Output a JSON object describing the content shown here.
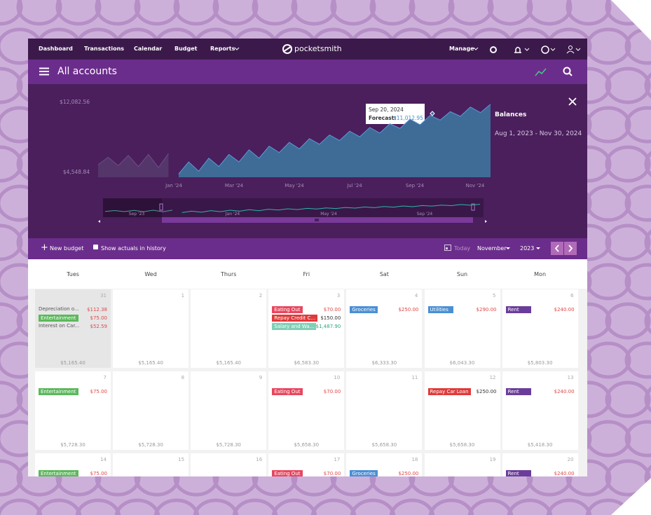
{
  "nav": {
    "links": [
      "Dashboard",
      "Transactions",
      "Calendar",
      "Budget",
      "Reports"
    ],
    "logo": "pocketsmith",
    "manage": "Manage"
  },
  "header": {
    "title": "All accounts"
  },
  "chart": {
    "ylim": [
      4548.84,
      12082.56
    ],
    "yticks": [
      {
        "value": 12082.56,
        "label": "$12,082.56"
      },
      {
        "value": 4548.84,
        "label": "$4,548.84"
      }
    ],
    "xticks": [
      "Jan '24",
      "Mar '24",
      "May '24",
      "Jul '24",
      "Sep '24",
      "Nov '24"
    ],
    "series": [
      {
        "color": "#55366a",
        "values": [
          5300,
          6100,
          5200,
          6300,
          5100,
          6400,
          5000,
          6500
        ]
      },
      {
        "color": "#3f6b97",
        "values": [
          4300,
          5600,
          4600,
          6000,
          5100,
          6400,
          5600,
          6900,
          6000,
          7300,
          6600,
          7700,
          7000,
          8100,
          7500,
          8500,
          7900,
          8900,
          8300,
          9300,
          8700,
          9700,
          9200,
          10200,
          9600,
          10600,
          10100,
          11000,
          10500,
          11500,
          10900,
          11800
        ]
      }
    ],
    "tooltip": {
      "date": "Sep 20, 2024",
      "label": "Forecast:",
      "value": "$11,012.95"
    },
    "navigator": {
      "labels": [
        "Sep '23",
        "Jan '24",
        "May '24",
        "Sep '24"
      ]
    },
    "panel": {
      "title": "Balances",
      "range": "Aug 1, 2023 - Nov 30, 2024"
    }
  },
  "toolbar": {
    "new_budget": "New budget",
    "show_actuals": "Show actuals in history",
    "today": "Today",
    "month": "November",
    "year": "2023"
  },
  "calendar": {
    "weekdays": [
      "Tues",
      "Wed",
      "Thurs",
      "Fri",
      "Sat",
      "Sun",
      "Mon"
    ],
    "weeks": [
      {
        "days": [
          {
            "day": 31,
            "balance": "$5,165.40",
            "events": [
              {
                "label": "Depreciation o...",
                "amount": "$112.38",
                "amount_color": "#e04848"
              },
              {
                "label": "Entertainment",
                "amount": "$75.00",
                "color": "#5cb85c",
                "amount_color": "#e04848"
              },
              {
                "label": "Interest on Car...",
                "amount": "$52.59",
                "amount_color": "#e04848"
              }
            ]
          },
          {
            "day": 1,
            "balance": "$5,165.40",
            "events": []
          },
          {
            "day": 2,
            "balance": "$5,165.40",
            "events": []
          },
          {
            "day": 3,
            "balance": "$6,583.30",
            "events": [
              {
                "label": "Eating Out",
                "amount": "$70.00",
                "color": "#e8475f",
                "amount_color": "#e04848"
              },
              {
                "label": "Repay Credit C...",
                "amount": "$150.00",
                "color": "#e03a3a",
                "amount_color": "#333333"
              },
              {
                "label": "Salary and Wa...",
                "amount": "$1,487.90",
                "color": "#7fcfb5",
                "amount_color": "#2aa876"
              }
            ]
          },
          {
            "day": 4,
            "balance": "$6,333.30",
            "events": [
              {
                "label": "Groceries",
                "amount": "$250.00",
                "color": "#4a8fd4",
                "amount_color": "#e04848"
              }
            ]
          },
          {
            "day": 5,
            "balance": "$6,043.30",
            "events": [
              {
                "label": "Utilities",
                "amount": "$290.00",
                "color": "#4a8fd4",
                "amount_color": "#e04848"
              }
            ]
          },
          {
            "day": 6,
            "balance": "$5,803.30",
            "events": [
              {
                "label": "Rent",
                "amount": "$240.00",
                "color": "#6a3d9a",
                "amount_color": "#e04848"
              }
            ]
          }
        ]
      },
      {
        "days": [
          {
            "day": 7,
            "balance": "$5,728.30",
            "events": [
              {
                "label": "Entertainment",
                "amount": "$75.00",
                "color": "#5cb85c",
                "amount_color": "#e04848"
              }
            ]
          },
          {
            "day": 8,
            "balance": "$5,728.30",
            "events": []
          },
          {
            "day": 9,
            "balance": "$5,728.30",
            "events": []
          },
          {
            "day": 10,
            "balance": "$5,658.30",
            "events": [
              {
                "label": "Eating Out",
                "amount": "$70.00",
                "color": "#e8475f",
                "amount_color": "#e04848"
              }
            ]
          },
          {
            "day": 11,
            "balance": "$5,658.30",
            "events": []
          },
          {
            "day": 12,
            "balance": "$5,658.30",
            "events": [
              {
                "label": "Repay Car Loan",
                "amount": "$250.00",
                "color": "#e03a3a",
                "amount_color": "#333333"
              }
            ]
          },
          {
            "day": 13,
            "balance": "$5,418.30",
            "events": [
              {
                "label": "Rent",
                "amount": "$240.00",
                "color": "#6a3d9a",
                "amount_color": "#e04848"
              }
            ]
          }
        ]
      },
      {
        "days": [
          {
            "day": 14,
            "events": [
              {
                "label": "Entertainment",
                "amount": "$75.00",
                "color": "#5cb85c",
                "amount_color": "#e04848"
              }
            ]
          },
          {
            "day": 15,
            "events": []
          },
          {
            "day": 16,
            "events": []
          },
          {
            "day": 17,
            "events": [
              {
                "label": "Eating Out",
                "amount": "$70.00",
                "color": "#e8475f",
                "amount_color": "#e04848"
              }
            ]
          },
          {
            "day": 18,
            "events": [
              {
                "label": "Groceries",
                "amount": "$250.00",
                "color": "#4a8fd4",
                "amount_color": "#e04848"
              }
            ]
          },
          {
            "day": 19,
            "events": []
          },
          {
            "day": 20,
            "events": [
              {
                "label": "Rent",
                "amount": "$240.00",
                "color": "#6a3d9a",
                "amount_color": "#e04848"
              }
            ]
          }
        ]
      }
    ]
  }
}
